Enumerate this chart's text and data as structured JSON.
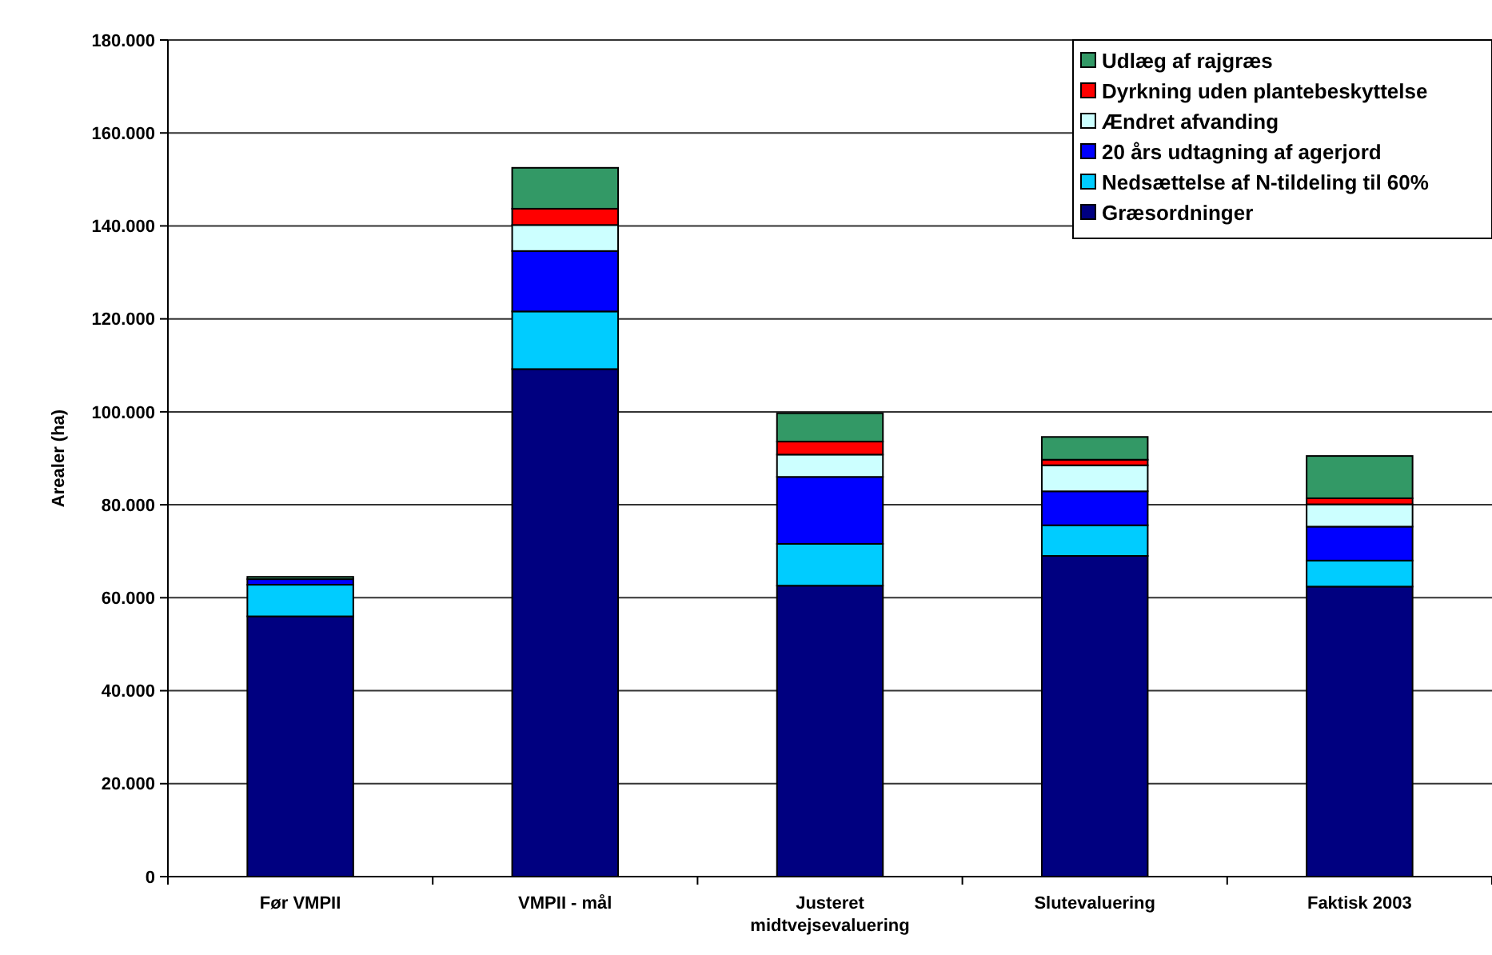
{
  "chart_data": {
    "type": "bar",
    "stacked": true,
    "ylabel": "Arealer (ha)",
    "categories": [
      "Før VMPII",
      "VMPII - mål",
      "Justeret midtvejsevaluering",
      "Slutevaluering",
      "Faktisk 2003"
    ],
    "series": [
      {
        "name": "Græsordninger",
        "color": "#000080",
        "values": [
          56000,
          109200,
          62600,
          69000,
          62400
        ]
      },
      {
        "name": "Nedsættelse af N-tildeling til 60%",
        "color": "#00ccff",
        "values": [
          6800,
          12400,
          9000,
          6600,
          5600
        ]
      },
      {
        "name": "20 års udtagning af agerjord",
        "color": "#0000ff",
        "values": [
          1200,
          13000,
          14400,
          7300,
          7300
        ]
      },
      {
        "name": "Ændret afvanding",
        "color": "#ccffff",
        "values": [
          0,
          5600,
          4800,
          5600,
          4800
        ]
      },
      {
        "name": "Dyrkning uden plantebeskyttelse",
        "color": "#ff0000",
        "values": [
          0,
          3500,
          2800,
          1200,
          1300
        ]
      },
      {
        "name": "Udlæg af rajgræs",
        "color": "#339966",
        "values": [
          500,
          8800,
          6100,
          4900,
          9100
        ]
      }
    ],
    "ylim": [
      0,
      180000
    ],
    "yticks": [
      {
        "value": 0,
        "label": "0"
      },
      {
        "value": 20000,
        "label": "20.000"
      },
      {
        "value": 40000,
        "label": "40.000"
      },
      {
        "value": 60000,
        "label": "60.000"
      },
      {
        "value": 80000,
        "label": "80.000"
      },
      {
        "value": 100000,
        "label": "100.000"
      },
      {
        "value": 120000,
        "label": "120.000"
      },
      {
        "value": 140000,
        "label": "140.000"
      },
      {
        "value": 160000,
        "label": "160.000"
      },
      {
        "value": 180000,
        "label": "180.000"
      }
    ],
    "grid": "y",
    "legend": "top right"
  }
}
